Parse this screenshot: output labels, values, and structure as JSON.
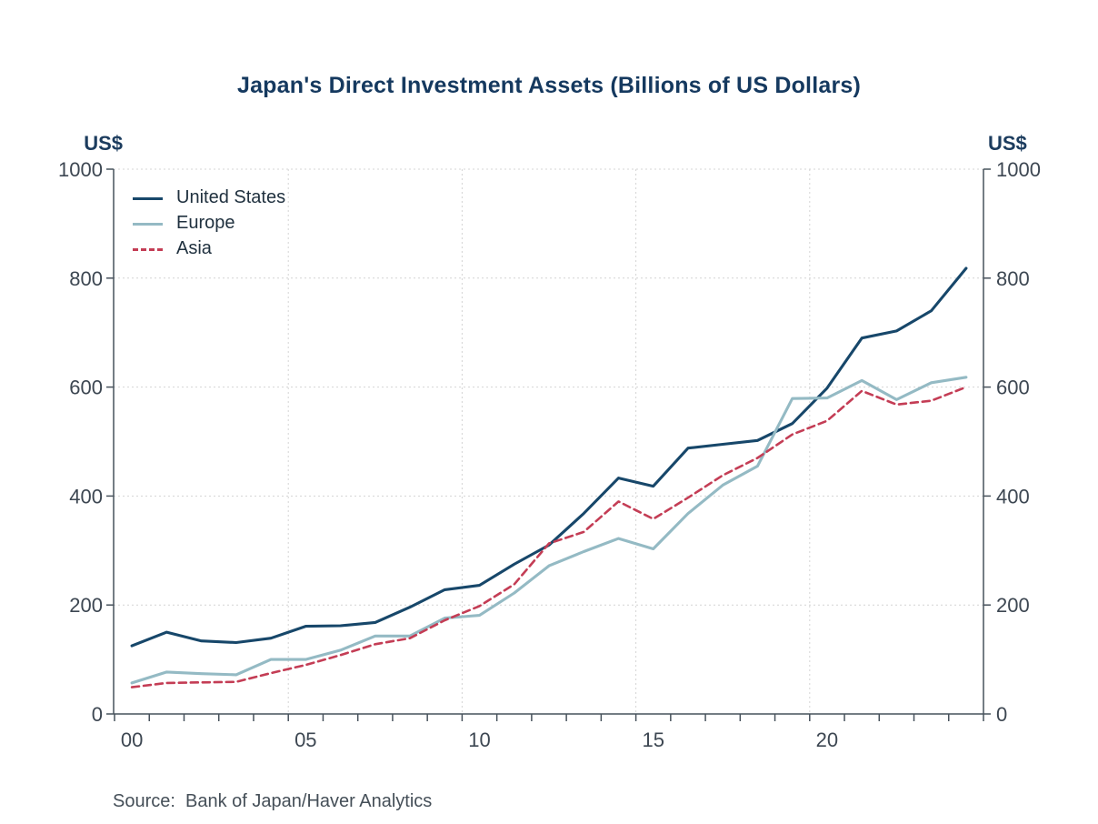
{
  "title": "Japan's Direct Investment Assets (Billions of US Dollars)",
  "axes": {
    "unit_left": "US$",
    "unit_right": "US$"
  },
  "source": "Source:  Bank of Japan/Haver Analytics",
  "colors": {
    "title": "#15395f",
    "tick_labels": "#3d4752",
    "axis_line": "#47525c",
    "gridline": "#d4d4d4",
    "united_states": "#17476a",
    "europe": "#94bac4",
    "asia": "#c43d55"
  },
  "chart_data": {
    "type": "line",
    "title": "Japan's Direct Investment Assets (Billions of US Dollars)",
    "xlabel": "",
    "ylabel": "US$",
    "ylim": [
      0,
      1000
    ],
    "yticks": [
      0,
      200,
      400,
      600,
      800,
      1000
    ],
    "x": [
      2000,
      2001,
      2002,
      2003,
      2004,
      2005,
      2006,
      2007,
      2008,
      2009,
      2010,
      2011,
      2012,
      2013,
      2014,
      2015,
      2016,
      2017,
      2018,
      2019,
      2020,
      2021,
      2022,
      2023,
      2024
    ],
    "xtick_years": [
      2000,
      2005,
      2010,
      2015,
      2020
    ],
    "xtick_labels": [
      "00",
      "05",
      "10",
      "15",
      "20"
    ],
    "grid": true,
    "legend_position": "top-left",
    "series": [
      {
        "name": "United States",
        "style": "solid",
        "color": "#17476a",
        "values": [
          125,
          150,
          134,
          131,
          139,
          161,
          162,
          168,
          196,
          228,
          236,
          275,
          310,
          368,
          433,
          418,
          488,
          495,
          502,
          533,
          598,
          690,
          703,
          740,
          818
        ]
      },
      {
        "name": "Europe",
        "style": "solid",
        "color": "#94bac4",
        "values": [
          57,
          77,
          74,
          72,
          100,
          100,
          117,
          143,
          143,
          176,
          181,
          222,
          272,
          298,
          322,
          303,
          368,
          420,
          455,
          579,
          580,
          612,
          577,
          608,
          618
        ]
      },
      {
        "name": "Asia",
        "style": "dashed",
        "color": "#c43d55",
        "values": [
          49,
          57,
          58,
          59,
          75,
          90,
          108,
          128,
          139,
          172,
          198,
          238,
          313,
          334,
          390,
          358,
          397,
          438,
          470,
          513,
          538,
          593,
          568,
          575,
          600
        ]
      }
    ]
  }
}
